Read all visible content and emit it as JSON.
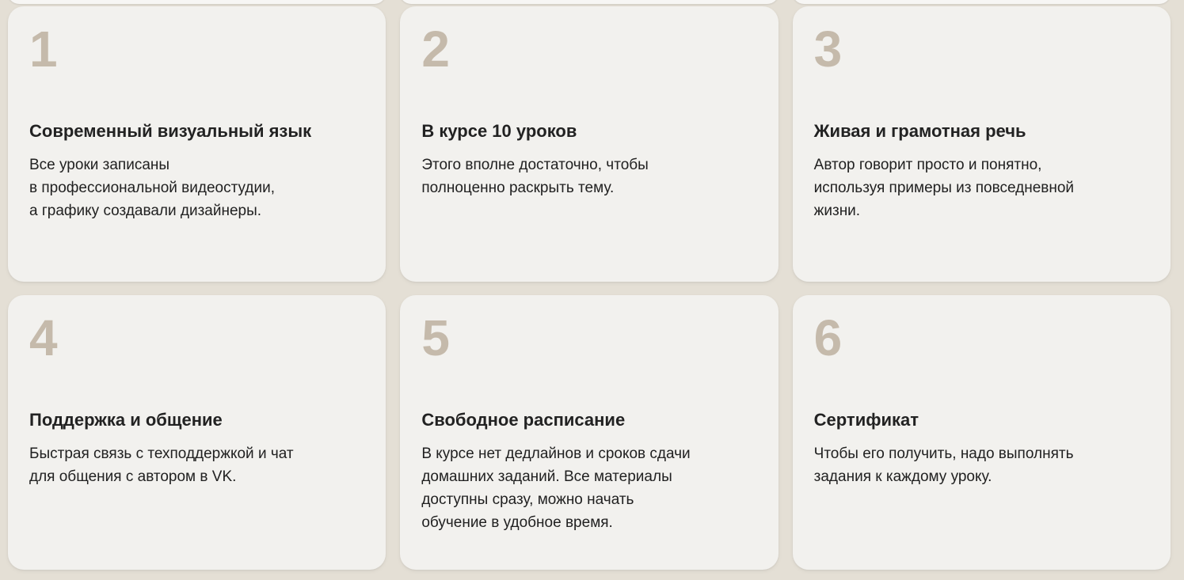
{
  "colors": {
    "page_background": "#e4dfd5",
    "card_background": "#f2f1ee",
    "sliver_background": "#f7f6f4",
    "number": "#c5baab",
    "heading_text": "#222222",
    "body_text": "#212121"
  },
  "cards": [
    {
      "number": "1",
      "title": "Современный визуальный язык",
      "text": "Все уроки записаны\nв профессиональной видеостудии,\nа графику создавали дизайнеры."
    },
    {
      "number": "2",
      "title": "В курсе 10 уроков",
      "text": "Этого вполне достаточно, чтобы\nполноценно раскрыть тему."
    },
    {
      "number": "3",
      "title": "Живая и грамотная речь",
      "text": "Автор говорит просто и понятно,\nиспользуя примеры из повседневной\nжизни."
    },
    {
      "number": "4",
      "title": "Поддержка и общение",
      "text": "Быстрая связь с техподдержкой и чат\nдля общения с автором в VK."
    },
    {
      "number": "5",
      "title": "Свободное расписание",
      "text": "В курсе нет дедлайнов и сроков сдачи\nдомашних заданий. Все материалы\nдоступны сразу, можно начать\nобучение в удобное время."
    },
    {
      "number": "6",
      "title": "Сертификат",
      "text": "Чтобы его получить, надо выполнять\nзадания к каждому уроку."
    }
  ]
}
